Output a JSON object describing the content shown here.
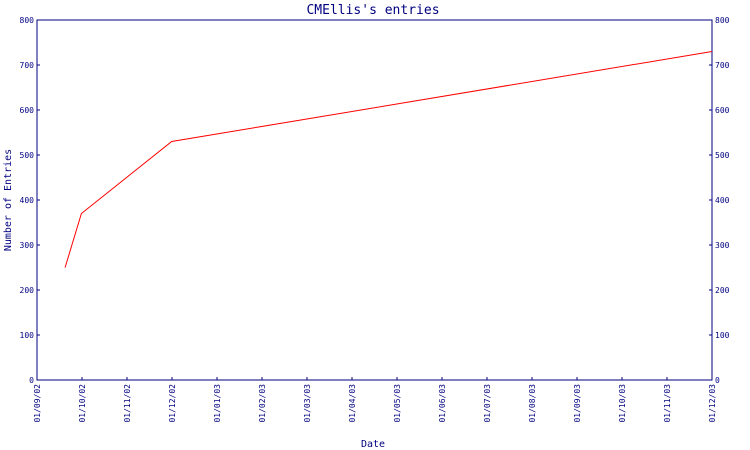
{
  "chart_data": {
    "type": "line",
    "title": "CMEllis's entries",
    "xlabel": "Date",
    "ylabel": "Number of Entries",
    "x_tick_labels": [
      "01/09/02",
      "01/10/02",
      "01/11/02",
      "01/12/02",
      "01/01/03",
      "01/02/03",
      "01/03/03",
      "01/04/03",
      "01/05/03",
      "01/06/03",
      "01/07/03",
      "01/08/03",
      "01/09/03",
      "01/10/03",
      "01/11/03",
      "01/12/03"
    ],
    "y_ticks": [
      0,
      100,
      200,
      300,
      400,
      500,
      600,
      700,
      800
    ],
    "ylim": [
      0,
      800
    ],
    "xlim": [
      "2002-09-01",
      "2003-12-01"
    ],
    "grid": false,
    "series": [
      {
        "color": "#ff0000",
        "points": [
          {
            "x": "2002-09-20",
            "y": 250
          },
          {
            "x": "2002-10-01",
            "y": 370
          },
          {
            "x": "2002-12-01",
            "y": 530
          },
          {
            "x": "2003-12-01",
            "y": 730
          }
        ]
      }
    ],
    "colors": {
      "axis": "#000080",
      "text": "#000080",
      "line": "#ff0000"
    }
  }
}
